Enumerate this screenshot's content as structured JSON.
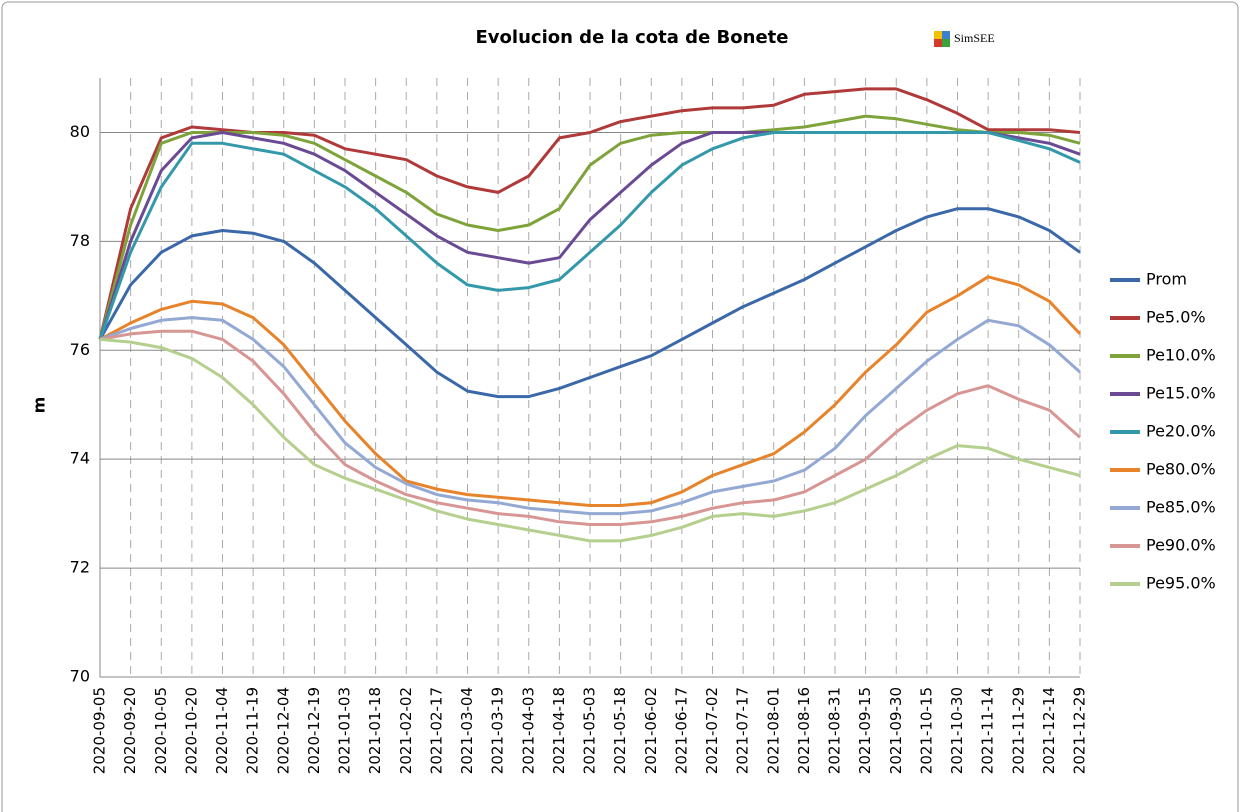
{
  "chart_data": {
    "type": "line",
    "title": "Evolucion de la cota de Bonete",
    "logo": "SimSEE",
    "y_label": "m",
    "categories": [
      "2020-09-05",
      "2020-09-20",
      "2020-10-05",
      "2020-10-20",
      "2020-11-04",
      "2020-11-19",
      "2020-12-04",
      "2020-12-19",
      "2021-01-03",
      "2021-01-18",
      "2021-02-02",
      "2021-02-17",
      "2021-03-04",
      "2021-03-19",
      "2021-04-03",
      "2021-04-18",
      "2021-05-03",
      "2021-05-18",
      "2021-06-02",
      "2021-06-17",
      "2021-07-02",
      "2021-07-17",
      "2021-08-01",
      "2021-08-16",
      "2021-08-31",
      "2021-09-15",
      "2021-09-30",
      "2021-10-15",
      "2021-10-30",
      "2021-11-14",
      "2021-11-29",
      "2021-12-14",
      "2021-12-29"
    ],
    "ylim": [
      70,
      81
    ],
    "yticks": [
      70,
      72,
      74,
      76,
      78,
      80
    ],
    "grid": true,
    "legend": "right",
    "series": [
      {
        "name": "Prom",
        "color": "#3a68a8",
        "values": [
          76.2,
          77.2,
          77.8,
          78.1,
          78.2,
          78.15,
          78.0,
          77.6,
          77.1,
          76.6,
          76.1,
          75.6,
          75.25,
          75.15,
          75.15,
          75.3,
          75.5,
          75.7,
          75.9,
          76.2,
          76.5,
          76.8,
          77.05,
          77.3,
          77.6,
          77.9,
          78.2,
          78.45,
          78.6,
          78.6,
          78.45,
          78.2,
          77.8
        ]
      },
      {
        "name": "Pe5.0%",
        "color": "#b03a3a",
        "values": [
          76.2,
          78.6,
          79.9,
          80.1,
          80.05,
          80.0,
          80.0,
          79.95,
          79.7,
          79.6,
          79.5,
          79.2,
          79.0,
          78.9,
          79.2,
          79.9,
          80.0,
          80.2,
          80.3,
          80.4,
          80.45,
          80.45,
          80.5,
          80.7,
          80.75,
          80.8,
          80.8,
          80.6,
          80.35,
          80.05,
          80.05,
          80.05,
          80.0
        ]
      },
      {
        "name": "Pe10.0%",
        "color": "#7da33a",
        "values": [
          76.2,
          78.3,
          79.8,
          80.0,
          80.0,
          80.0,
          79.95,
          79.8,
          79.5,
          79.2,
          78.9,
          78.5,
          78.3,
          78.2,
          78.3,
          78.6,
          79.4,
          79.8,
          79.95,
          80.0,
          80.0,
          80.0,
          80.05,
          80.1,
          80.2,
          80.3,
          80.25,
          80.15,
          80.05,
          80.0,
          80.0,
          79.95,
          79.8
        ]
      },
      {
        "name": "Pe15.0%",
        "color": "#6b4a94",
        "values": [
          76.2,
          78.0,
          79.3,
          79.9,
          80.0,
          79.9,
          79.8,
          79.6,
          79.3,
          78.9,
          78.5,
          78.1,
          77.8,
          77.7,
          77.6,
          77.7,
          78.4,
          78.9,
          79.4,
          79.8,
          80.0,
          80.0,
          80.0,
          80.0,
          80.0,
          80.0,
          80.0,
          80.0,
          80.0,
          80.0,
          79.9,
          79.8,
          79.6
        ]
      },
      {
        "name": "Pe20.0%",
        "color": "#3399aa",
        "values": [
          76.2,
          77.8,
          79.0,
          79.8,
          79.8,
          79.7,
          79.6,
          79.3,
          79.0,
          78.6,
          78.1,
          77.6,
          77.2,
          77.1,
          77.15,
          77.3,
          77.8,
          78.3,
          78.9,
          79.4,
          79.7,
          79.9,
          80.0,
          80.0,
          80.0,
          80.0,
          80.0,
          80.0,
          80.0,
          80.0,
          79.85,
          79.7,
          79.45
        ]
      },
      {
        "name": "Pe80.0%",
        "color": "#e7832b",
        "values": [
          76.2,
          76.5,
          76.75,
          76.9,
          76.85,
          76.6,
          76.1,
          75.4,
          74.7,
          74.1,
          73.6,
          73.45,
          73.35,
          73.3,
          73.25,
          73.2,
          73.15,
          73.15,
          73.2,
          73.4,
          73.7,
          73.9,
          74.1,
          74.5,
          75.0,
          75.6,
          76.1,
          76.7,
          77.0,
          77.35,
          77.2,
          76.9,
          76.3
        ]
      },
      {
        "name": "Pe85.0%",
        "color": "#93a9d4",
        "values": [
          76.2,
          76.4,
          76.55,
          76.6,
          76.55,
          76.2,
          75.7,
          75.0,
          74.3,
          73.85,
          73.55,
          73.35,
          73.25,
          73.2,
          73.1,
          73.05,
          73.0,
          73.0,
          73.05,
          73.2,
          73.4,
          73.5,
          73.6,
          73.8,
          74.2,
          74.8,
          75.3,
          75.8,
          76.2,
          76.55,
          76.45,
          76.1,
          75.6
        ]
      },
      {
        "name": "Pe90.0%",
        "color": "#d79694",
        "values": [
          76.2,
          76.3,
          76.35,
          76.35,
          76.2,
          75.8,
          75.2,
          74.5,
          73.9,
          73.6,
          73.35,
          73.2,
          73.1,
          73.0,
          72.95,
          72.85,
          72.8,
          72.8,
          72.85,
          72.95,
          73.1,
          73.2,
          73.25,
          73.4,
          73.7,
          74.0,
          74.5,
          74.9,
          75.2,
          75.35,
          75.1,
          74.9,
          74.4
        ]
      },
      {
        "name": "Pe95.0%",
        "color": "#b5cf8e",
        "values": [
          76.2,
          76.15,
          76.05,
          75.85,
          75.5,
          75.0,
          74.4,
          73.9,
          73.65,
          73.45,
          73.25,
          73.05,
          72.9,
          72.8,
          72.7,
          72.6,
          72.5,
          72.5,
          72.6,
          72.75,
          72.95,
          73.0,
          72.95,
          73.05,
          73.2,
          73.45,
          73.7,
          74.0,
          74.25,
          74.2,
          74.0,
          73.85,
          73.7
        ]
      }
    ]
  }
}
